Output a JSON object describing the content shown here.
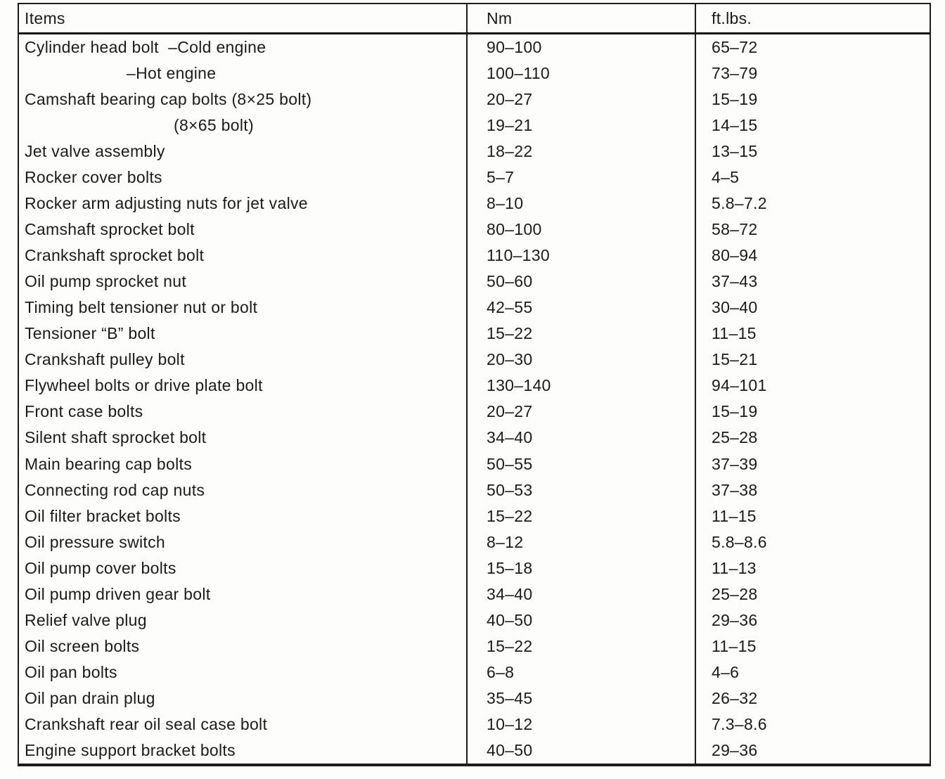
{
  "table": {
    "headers": {
      "items": "Items",
      "nm": "Nm",
      "ftlbs": "ft.lbs."
    },
    "rows": [
      {
        "item": "Cylinder head bolt  –Cold engine",
        "indent": 0,
        "nm": "90–100",
        "ftlbs": "65–72"
      },
      {
        "item": "–Hot engine",
        "indent": 1,
        "nm": "100–110",
        "ftlbs": "73–79"
      },
      {
        "item": "Camshaft bearing cap bolts (8×25 bolt)",
        "indent": 0,
        "nm": "20–27",
        "ftlbs": "15–19"
      },
      {
        "item": "(8×65 bolt)",
        "indent": 2,
        "nm": "19–21",
        "ftlbs": "14–15"
      },
      {
        "item": "Jet valve assembly",
        "indent": 0,
        "nm": "18–22",
        "ftlbs": "13–15"
      },
      {
        "item": "Rocker cover bolts",
        "indent": 0,
        "nm": "5–7",
        "ftlbs": "4–5"
      },
      {
        "item": "Rocker arm adjusting nuts for jet valve",
        "indent": 0,
        "nm": "8–10",
        "ftlbs": "5.8–7.2"
      },
      {
        "item": "Camshaft sprocket bolt",
        "indent": 0,
        "nm": "80–100",
        "ftlbs": "58–72"
      },
      {
        "item": "Crankshaft sprocket bolt",
        "indent": 0,
        "nm": "110–130",
        "ftlbs": "80–94"
      },
      {
        "item": "Oil pump sprocket nut",
        "indent": 0,
        "nm": "50–60",
        "ftlbs": "37–43"
      },
      {
        "item": "Timing belt tensioner nut or bolt",
        "indent": 0,
        "nm": "42–55",
        "ftlbs": "30–40"
      },
      {
        "item": "Tensioner “B” bolt",
        "indent": 0,
        "nm": "15–22",
        "ftlbs": "11–15"
      },
      {
        "item": "Crankshaft pulley bolt",
        "indent": 0,
        "nm": "20–30",
        "ftlbs": "15–21"
      },
      {
        "item": "Flywheel bolts or drive plate bolt",
        "indent": 0,
        "nm": "130–140",
        "ftlbs": "94–101"
      },
      {
        "item": "Front case bolts",
        "indent": 0,
        "nm": "20–27",
        "ftlbs": "15–19"
      },
      {
        "item": "Silent shaft sprocket bolt",
        "indent": 0,
        "nm": "34–40",
        "ftlbs": "25–28"
      },
      {
        "item": "Main bearing cap bolts",
        "indent": 0,
        "nm": "50–55",
        "ftlbs": "37–39"
      },
      {
        "item": "Connecting rod cap nuts",
        "indent": 0,
        "nm": "50–53",
        "ftlbs": "37–38"
      },
      {
        "item": "Oil filter bracket bolts",
        "indent": 0,
        "nm": "15–22",
        "ftlbs": "11–15"
      },
      {
        "item": "Oil pressure switch",
        "indent": 0,
        "nm": "8–12",
        "ftlbs": "5.8–8.6"
      },
      {
        "item": "Oil pump cover bolts",
        "indent": 0,
        "nm": "15–18",
        "ftlbs": "11–13"
      },
      {
        "item": "Oil pump driven gear bolt",
        "indent": 0,
        "nm": "34–40",
        "ftlbs": "25–28"
      },
      {
        "item": "Relief valve plug",
        "indent": 0,
        "nm": "40–50",
        "ftlbs": "29–36"
      },
      {
        "item": "Oil screen bolts",
        "indent": 0,
        "nm": "15–22",
        "ftlbs": "11–15"
      },
      {
        "item": "Oil pan bolts",
        "indent": 0,
        "nm": "6–8",
        "ftlbs": "4–6"
      },
      {
        "item": "Oil pan drain plug",
        "indent": 0,
        "nm": "35–45",
        "ftlbs": "26–32"
      },
      {
        "item": "Crankshaft rear oil seal case bolt",
        "indent": 0,
        "nm": "10–12",
        "ftlbs": "7.3–8.6"
      },
      {
        "item": "Engine support bracket bolts",
        "indent": 0,
        "nm": "40–50",
        "ftlbs": "29–36"
      }
    ]
  }
}
